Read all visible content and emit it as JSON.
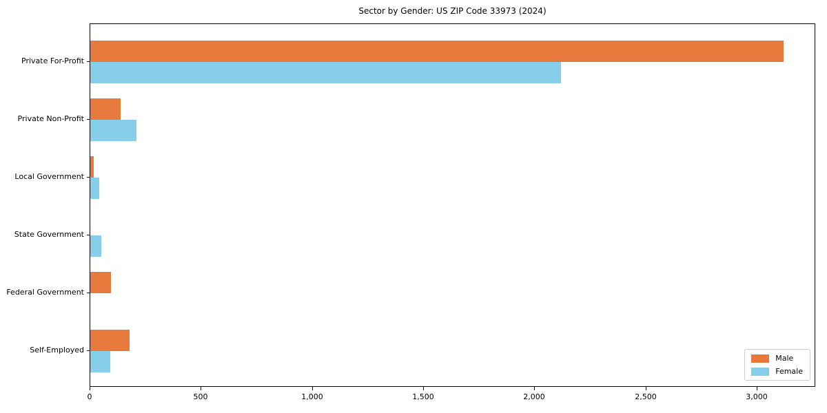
{
  "chart_data": {
    "type": "bar",
    "orientation": "horizontal",
    "title": "Sector by Gender: US ZIP Code 33973 (2024)",
    "categories": [
      "Private For-Profit",
      "Private Non-Profit",
      "Local Government",
      "State Government",
      "Federal Government",
      "Self-Employed"
    ],
    "series": [
      {
        "name": "Male",
        "color": "#e8793d",
        "values": [
          3116,
          136,
          16,
          0,
          93,
          176
        ]
      },
      {
        "name": "Female",
        "color": "#87ceeb",
        "values": [
          2117,
          208,
          40,
          50,
          0,
          91
        ]
      }
    ],
    "xlabel": "",
    "ylabel": "",
    "xlim": [
      0,
      3263
    ],
    "xticks": [
      0,
      500,
      1000,
      1500,
      2000,
      2500,
      3000
    ],
    "xtick_labels": [
      "0",
      "500",
      "1,000",
      "1,500",
      "2,000",
      "2,500",
      "3,000"
    ],
    "grid": false,
    "legend": {
      "position": "lower-right",
      "entries": [
        "Male",
        "Female"
      ]
    }
  }
}
